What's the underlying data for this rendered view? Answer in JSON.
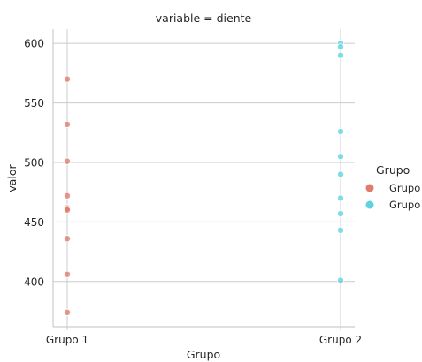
{
  "chart_data": {
    "type": "scatter",
    "facet_title": "variable = diente",
    "xlabel": "Grupo",
    "ylabel": "valor",
    "categories": [
      "Grupo 1",
      "Grupo 2"
    ],
    "yticks": [
      400,
      450,
      500,
      550,
      600
    ],
    "ylim": [
      362,
      612
    ],
    "grid": true,
    "legend": {
      "title": "Grupo",
      "placement": "right",
      "entries": [
        "Grupo",
        "Grupo"
      ]
    },
    "series": [
      {
        "category": "Grupo 1",
        "color": "#e07b6d",
        "values": [
          570,
          532,
          501,
          472,
          462,
          461,
          460,
          436,
          406,
          374
        ]
      },
      {
        "category": "Grupo 2",
        "color": "#5ed3e0",
        "values": [
          600,
          597,
          590,
          526,
          505,
          490,
          470,
          457,
          443,
          401
        ]
      }
    ]
  }
}
